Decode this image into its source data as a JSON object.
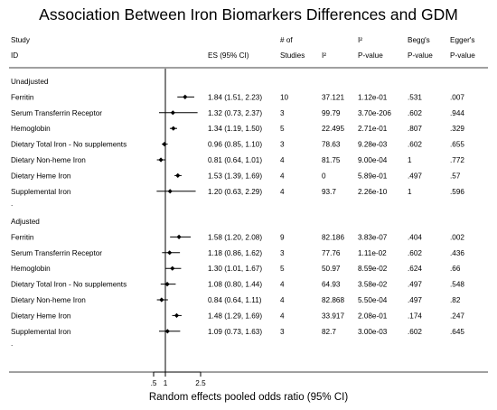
{
  "chart_data": {
    "type": "forest",
    "title": "Association Between Iron Biomarkers Differences and GDM",
    "xlabel": "Random effects pooled odds ratio (95% CI)",
    "x_ticks": [
      ".5",
      "1",
      "2.5"
    ],
    "x_tick_values": [
      0.5,
      1,
      2.5
    ],
    "xlim": [
      0.5,
      2.5
    ],
    "null_line": 1,
    "header": {
      "row1": {
        "study": "Study",
        "num": "# of",
        "i2p": "I²",
        "begg": "Begg's",
        "egger": "Egger's"
      },
      "row2": {
        "study": "ID",
        "es": "ES (95% CI)",
        "num": "Studies",
        "i2": "I²",
        "i2p": "P-value",
        "begg": "P-value",
        "egger": "P-value"
      }
    },
    "groups": [
      {
        "label": "Unadjusted",
        "rows": [
          {
            "name": "Ferritin",
            "es": 1.84,
            "lo": 1.51,
            "hi": 2.23,
            "es_text": "1.84 (1.51, 2.23)",
            "n": "10",
            "i2": "37.121",
            "i2_p": "1.12e-01",
            "begg": ".531",
            "egger": ".007"
          },
          {
            "name": "Serum Transferrin Receptor",
            "es": 1.32,
            "lo": 0.73,
            "hi": 2.37,
            "es_text": "1.32 (0.73, 2.37)",
            "n": "3",
            "i2": "99.79",
            "i2_p": "3.70e-206",
            "begg": ".602",
            "egger": ".944"
          },
          {
            "name": "Hemoglobin",
            "es": 1.34,
            "lo": 1.19,
            "hi": 1.5,
            "es_text": "1.34 (1.19, 1.50)",
            "n": "5",
            "i2": "22.495",
            "i2_p": "2.71e-01",
            "begg": ".807",
            "egger": ".329"
          },
          {
            "name": "Dietary Total Iron - No supplements",
            "es": 0.96,
            "lo": 0.85,
            "hi": 1.1,
            "es_text": "0.96 (0.85, 1.10)",
            "n": "3",
            "i2": "78.63",
            "i2_p": "9.28e-03",
            "begg": ".602",
            "egger": ".655"
          },
          {
            "name": "Dietary Non-heme Iron",
            "es": 0.81,
            "lo": 0.64,
            "hi": 1.01,
            "es_text": "0.81 (0.64, 1.01)",
            "n": "4",
            "i2": "81.75",
            "i2_p": "9.00e-04",
            "begg": "1",
            "egger": ".772"
          },
          {
            "name": "Dietary Heme Iron",
            "es": 1.53,
            "lo": 1.39,
            "hi": 1.69,
            "es_text": "1.53 (1.39, 1.69)",
            "n": "4",
            "i2": "0",
            "i2_p": "5.89e-01",
            "begg": ".497",
            "egger": ".57"
          },
          {
            "name": "Supplemental Iron",
            "es": 1.2,
            "lo": 0.63,
            "hi": 2.29,
            "es_text": "1.20 (0.63, 2.29)",
            "n": "4",
            "i2": "93.7",
            "i2_p": "2.26e-10",
            "begg": "1",
            "egger": ".596"
          }
        ]
      },
      {
        "label": "Adjusted",
        "rows": [
          {
            "name": "Ferritin",
            "es": 1.58,
            "lo": 1.2,
            "hi": 2.08,
            "es_text": "1.58 (1.20, 2.08)",
            "n": "9",
            "i2": "82.186",
            "i2_p": "3.83e-07",
            "begg": ".404",
            "egger": ".002"
          },
          {
            "name": "Serum Transferrin Receptor",
            "es": 1.18,
            "lo": 0.86,
            "hi": 1.62,
            "es_text": "1.18 (0.86, 1.62)",
            "n": "3",
            "i2": "77.76",
            "i2_p": "1.11e-02",
            "begg": ".602",
            "egger": ".436"
          },
          {
            "name": "Hemoglobin",
            "es": 1.3,
            "lo": 1.01,
            "hi": 1.67,
            "es_text": "1.30 (1.01, 1.67)",
            "n": "5",
            "i2": "50.97",
            "i2_p": "8.59e-02",
            "begg": ".624",
            "egger": ".66"
          },
          {
            "name": "Dietary Total Iron - No supplements",
            "es": 1.08,
            "lo": 0.8,
            "hi": 1.44,
            "es_text": "1.08 (0.80, 1.44)",
            "n": "4",
            "i2": "64.93",
            "i2_p": "3.58e-02",
            "begg": ".497",
            "egger": ".548"
          },
          {
            "name": "Dietary Non-heme Iron",
            "es": 0.84,
            "lo": 0.64,
            "hi": 1.11,
            "es_text": "0.84 (0.64, 1.11)",
            "n": "4",
            "i2": "82.868",
            "i2_p": "5.50e-04",
            "begg": ".497",
            "egger": ".82"
          },
          {
            "name": "Dietary Heme Iron",
            "es": 1.48,
            "lo": 1.29,
            "hi": 1.69,
            "es_text": "1.48 (1.29, 1.69)",
            "n": "4",
            "i2": "33.917",
            "i2_p": "2.08e-01",
            "begg": ".174",
            "egger": ".247"
          },
          {
            "name": "Supplemental Iron",
            "es": 1.09,
            "lo": 0.73,
            "hi": 1.63,
            "es_text": "1.09 (0.73, 1.63)",
            "n": "3",
            "i2": "82.7",
            "i2_p": "3.00e-03",
            "begg": ".602",
            "egger": ".645"
          }
        ]
      }
    ],
    "spacer_text": "."
  }
}
